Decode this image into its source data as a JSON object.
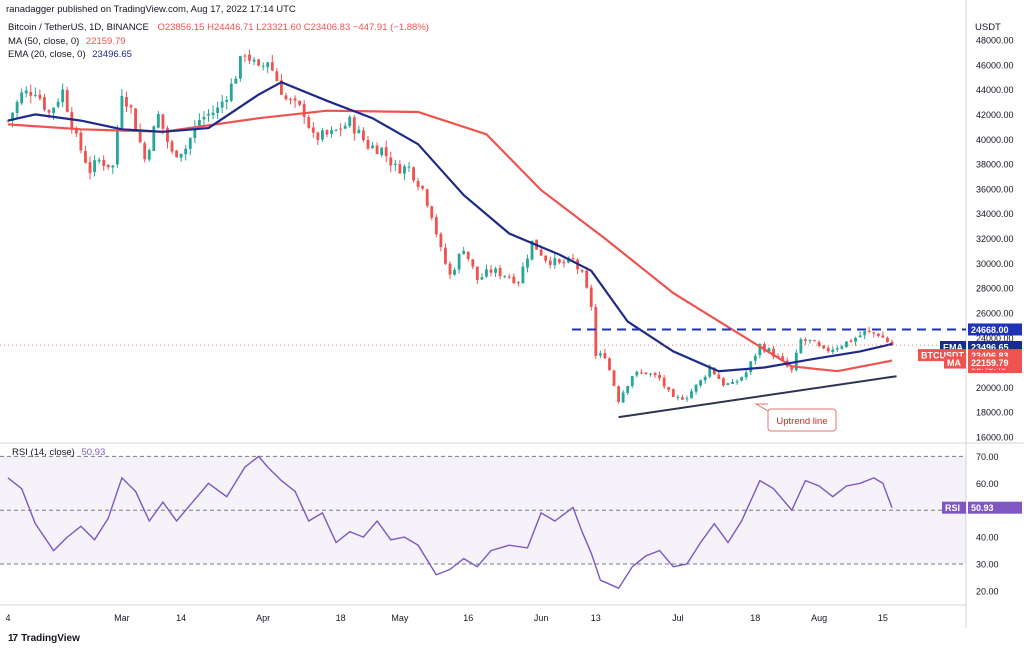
{
  "header": {
    "publisher": "ranadagger published on TradingView.com, Aug 17, 2022 17:14 UTC",
    "symbol": "Bitcoin / TetherUS, 1D, BINANCE",
    "ohlc": "O23856.15  H24446.71  L23321.60  C23406.83  −447.91 (−1.88%)",
    "ma_label": "MA (50, close, 0)",
    "ma_value": "22159.79",
    "ema_label": "EMA (20, close, 0)",
    "ema_value": "23496.65",
    "currency": "USDT"
  },
  "rsi_header": {
    "label": "RSI (14, close)",
    "value": "50.93"
  },
  "logo": {
    "mark": "17",
    "text": "TradingView"
  },
  "annotation": {
    "uptrend": "Uptrend line"
  },
  "price_tags": {
    "resistance": "24668.00",
    "ema_tag": "EMA",
    "ema_value": "23496.65",
    "btc_tag": "BTCUSDT",
    "btc_value": "23406.83",
    "countdown": "06:45:49",
    "ma_tag": "MA",
    "ma_value": "22159.79",
    "rsi_tag": "RSI",
    "rsi_value": "50.93"
  },
  "colors": {
    "up": "#26a69a",
    "down": "#ef5350",
    "ema": "#1e2a8a",
    "ma": "#ef5350",
    "rsi": "#7e57c2",
    "resistance": "#1e33b5",
    "trend": "#2a3550"
  },
  "chart_data": [
    {
      "type": "candlestick",
      "title": "Bitcoin / TetherUS, 1D, BINANCE",
      "x_range": [
        "2022-02-04",
        "2022-08-17"
      ],
      "ylim": [
        16000,
        48000
      ],
      "y_ticks": [
        16000,
        18000,
        20000,
        22000,
        24000,
        26000,
        28000,
        30000,
        32000,
        34000,
        36000,
        38000,
        40000,
        42000,
        44000,
        46000,
        48000
      ],
      "y_tick_labels": [
        "16000.00",
        "18000.00",
        "20000.00",
        "22000.00",
        "24000.00",
        "26000.00",
        "28000.00",
        "30000.00",
        "32000.00",
        "34000.00",
        "36000.00",
        "38000.00",
        "40000.00",
        "42000.00",
        "44000.00",
        "46000.00",
        "48000.00"
      ],
      "x_tick_labels": [
        {
          "date": "2022-02-04",
          "label": "4"
        },
        {
          "date": "2022-03-01",
          "label": "Mar"
        },
        {
          "date": "2022-03-14",
          "label": "14"
        },
        {
          "date": "2022-04-01",
          "label": "Apr"
        },
        {
          "date": "2022-04-18",
          "label": "18"
        },
        {
          "date": "2022-05-01",
          "label": "May"
        },
        {
          "date": "2022-05-16",
          "label": "16"
        },
        {
          "date": "2022-06-01",
          "label": "Jun"
        },
        {
          "date": "2022-06-13",
          "label": "13"
        },
        {
          "date": "2022-07-01",
          "label": "Jul"
        },
        {
          "date": "2022-07-18",
          "label": "18"
        },
        {
          "date": "2022-08-01",
          "label": "Aug"
        },
        {
          "date": "2022-08-15",
          "label": "15"
        }
      ],
      "close_path": [
        [
          "2022-02-04",
          41500
        ],
        [
          "2022-02-07",
          43600
        ],
        [
          "2022-02-10",
          44000
        ],
        [
          "2022-02-13",
          42100
        ],
        [
          "2022-02-16",
          43900
        ],
        [
          "2022-02-19",
          40000
        ],
        [
          "2022-02-22",
          37500
        ],
        [
          "2022-02-24",
          38300
        ],
        [
          "2022-02-27",
          37800
        ],
        [
          "2022-03-01",
          43900
        ],
        [
          "2022-03-03",
          42400
        ],
        [
          "2022-03-06",
          38400
        ],
        [
          "2022-03-09",
          41900
        ],
        [
          "2022-03-12",
          38800
        ],
        [
          "2022-03-15",
          39300
        ],
        [
          "2022-03-18",
          41600
        ],
        [
          "2022-03-22",
          42400
        ],
        [
          "2022-03-25",
          44300
        ],
        [
          "2022-03-28",
          47100
        ],
        [
          "2022-03-31",
          45500
        ],
        [
          "2022-04-02",
          46400
        ],
        [
          "2022-04-06",
          43200
        ],
        [
          "2022-04-10",
          42200
        ],
        [
          "2022-04-12",
          40100
        ],
        [
          "2022-04-16",
          40400
        ],
        [
          "2022-04-20",
          41400
        ],
        [
          "2022-04-24",
          39500
        ],
        [
          "2022-04-27",
          39200
        ],
        [
          "2022-04-30",
          37700
        ],
        [
          "2022-05-03",
          37700
        ],
        [
          "2022-05-06",
          36000
        ],
        [
          "2022-05-08",
          34000
        ],
        [
          "2022-05-10",
          31000
        ],
        [
          "2022-05-12",
          29000
        ],
        [
          "2022-05-15",
          31300
        ],
        [
          "2022-05-18",
          28700
        ],
        [
          "2022-05-21",
          29400
        ],
        [
          "2022-05-24",
          29100
        ],
        [
          "2022-05-27",
          28600
        ],
        [
          "2022-05-30",
          31700
        ],
        [
          "2022-06-02",
          30400
        ],
        [
          "2022-06-05",
          29900
        ],
        [
          "2022-06-08",
          30200
        ],
        [
          "2022-06-10",
          29000
        ],
        [
          "2022-06-12",
          26600
        ],
        [
          "2022-06-13",
          22500
        ],
        [
          "2022-06-15",
          22600
        ],
        [
          "2022-06-18",
          19000
        ],
        [
          "2022-06-21",
          21000
        ],
        [
          "2022-06-24",
          21200
        ],
        [
          "2022-06-27",
          20700
        ],
        [
          "2022-06-30",
          19000
        ],
        [
          "2022-07-03",
          19300
        ],
        [
          "2022-07-06",
          20500
        ],
        [
          "2022-07-08",
          21600
        ],
        [
          "2022-07-11",
          20300
        ],
        [
          "2022-07-13",
          20200
        ],
        [
          "2022-07-16",
          21200
        ],
        [
          "2022-07-19",
          23400
        ],
        [
          "2022-07-22",
          22700
        ],
        [
          "2022-07-26",
          21300
        ],
        [
          "2022-07-28",
          23800
        ],
        [
          "2022-07-30",
          23700
        ],
        [
          "2022-08-02",
          22900
        ],
        [
          "2022-08-05",
          23300
        ],
        [
          "2022-08-08",
          23800
        ],
        [
          "2022-08-11",
          24400
        ],
        [
          "2022-08-14",
          24300
        ],
        [
          "2022-08-17",
          23400
        ]
      ],
      "series": [
        {
          "name": "EMA (20, close, 0)",
          "values": [
            [
              "2022-02-04",
              41500
            ],
            [
              "2022-02-10",
              42000
            ],
            [
              "2022-02-20",
              41500
            ],
            [
              "2022-03-01",
              40800
            ],
            [
              "2022-03-10",
              40600
            ],
            [
              "2022-03-20",
              40900
            ],
            [
              "2022-03-31",
              43600
            ],
            [
              "2022-04-05",
              44600
            ],
            [
              "2022-04-15",
              43100
            ],
            [
              "2022-04-25",
              41700
            ],
            [
              "2022-05-05",
              39600
            ],
            [
              "2022-05-15",
              35500
            ],
            [
              "2022-05-25",
              32400
            ],
            [
              "2022-06-05",
              30700
            ],
            [
              "2022-06-12",
              29400
            ],
            [
              "2022-06-20",
              25300
            ],
            [
              "2022-06-30",
              22900
            ],
            [
              "2022-07-10",
              21300
            ],
            [
              "2022-07-20",
              21600
            ],
            [
              "2022-07-31",
              22300
            ],
            [
              "2022-08-10",
              22900
            ],
            [
              "2022-08-17",
              23496.65
            ]
          ]
        },
        {
          "name": "MA (50, close, 0)",
          "values": [
            [
              "2022-02-04",
              41200
            ],
            [
              "2022-02-20",
              40800
            ],
            [
              "2022-03-10",
              40600
            ],
            [
              "2022-03-31",
              41700
            ],
            [
              "2022-04-15",
              42300
            ],
            [
              "2022-05-05",
              42200
            ],
            [
              "2022-05-20",
              40400
            ],
            [
              "2022-06-01",
              35900
            ],
            [
              "2022-06-15",
              32000
            ],
            [
              "2022-06-30",
              27600
            ],
            [
              "2022-07-15",
              24200
            ],
            [
              "2022-07-26",
              21700
            ],
            [
              "2022-08-05",
              21300
            ],
            [
              "2022-08-17",
              22159.79
            ]
          ]
        }
      ],
      "annotations": {
        "resistance_level": 24668.0,
        "uptrend_line": [
          [
            "2022-06-18",
            17600
          ],
          [
            "2022-08-18",
            20900
          ]
        ],
        "uptrend_label": "Uptrend line",
        "last_price": 23406.83
      }
    },
    {
      "type": "line",
      "title": "RSI (14, close)",
      "ylim": [
        17,
        72
      ],
      "y_ticks": [
        20,
        30,
        40,
        50,
        60,
        70
      ],
      "y_tick_labels": [
        "20.00",
        "30.00",
        "40.00",
        "50.00",
        "60.00",
        "70.00"
      ],
      "levels": [
        70,
        50,
        30
      ],
      "series": [
        {
          "name": "RSI (14, close)",
          "values": [
            [
              "2022-02-04",
              62
            ],
            [
              "2022-02-07",
              58
            ],
            [
              "2022-02-10",
              45
            ],
            [
              "2022-02-14",
              35
            ],
            [
              "2022-02-17",
              40
            ],
            [
              "2022-02-20",
              44
            ],
            [
              "2022-02-23",
              39
            ],
            [
              "2022-02-26",
              47
            ],
            [
              "2022-03-01",
              62
            ],
            [
              "2022-03-04",
              57
            ],
            [
              "2022-03-07",
              46
            ],
            [
              "2022-03-10",
              53
            ],
            [
              "2022-03-13",
              46
            ],
            [
              "2022-03-16",
              52
            ],
            [
              "2022-03-20",
              60
            ],
            [
              "2022-03-24",
              55
            ],
            [
              "2022-03-28",
              66
            ],
            [
              "2022-03-31",
              70
            ],
            [
              "2022-04-02",
              66
            ],
            [
              "2022-04-05",
              61
            ],
            [
              "2022-04-08",
              57
            ],
            [
              "2022-04-11",
              46
            ],
            [
              "2022-04-14",
              49
            ],
            [
              "2022-04-17",
              38
            ],
            [
              "2022-04-20",
              42
            ],
            [
              "2022-04-23",
              40
            ],
            [
              "2022-04-26",
              46
            ],
            [
              "2022-04-29",
              39
            ],
            [
              "2022-05-02",
              40
            ],
            [
              "2022-05-05",
              37
            ],
            [
              "2022-05-09",
              26
            ],
            [
              "2022-05-12",
              28
            ],
            [
              "2022-05-15",
              32
            ],
            [
              "2022-05-18",
              29
            ],
            [
              "2022-05-21",
              35
            ],
            [
              "2022-05-25",
              37
            ],
            [
              "2022-05-29",
              36
            ],
            [
              "2022-06-01",
              49
            ],
            [
              "2022-06-04",
              46
            ],
            [
              "2022-06-08",
              51
            ],
            [
              "2022-06-10",
              42
            ],
            [
              "2022-06-12",
              34
            ],
            [
              "2022-06-14",
              24
            ],
            [
              "2022-06-18",
              21
            ],
            [
              "2022-06-21",
              29
            ],
            [
              "2022-06-24",
              33
            ],
            [
              "2022-06-27",
              35
            ],
            [
              "2022-06-30",
              29
            ],
            [
              "2022-07-03",
              30
            ],
            [
              "2022-07-06",
              38
            ],
            [
              "2022-07-09",
              45
            ],
            [
              "2022-07-12",
              38
            ],
            [
              "2022-07-15",
              46
            ],
            [
              "2022-07-19",
              61
            ],
            [
              "2022-07-22",
              58
            ],
            [
              "2022-07-26",
              50
            ],
            [
              "2022-07-29",
              61
            ],
            [
              "2022-08-01",
              59
            ],
            [
              "2022-08-04",
              55
            ],
            [
              "2022-08-07",
              59
            ],
            [
              "2022-08-10",
              60
            ],
            [
              "2022-08-13",
              62
            ],
            [
              "2022-08-15",
              60
            ],
            [
              "2022-08-17",
              50.93
            ]
          ]
        }
      ]
    }
  ]
}
